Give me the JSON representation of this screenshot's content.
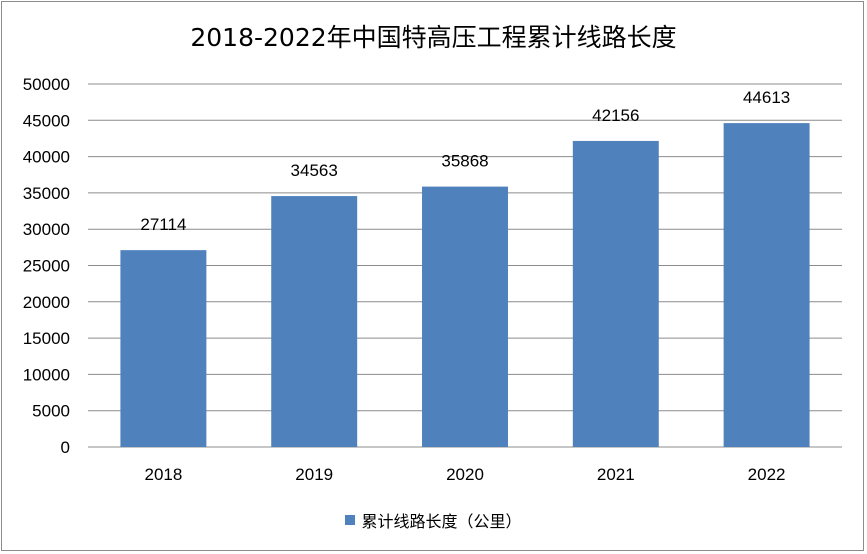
{
  "chart_data": {
    "type": "bar",
    "title": "2018-2022年中国特高压工程累计线路长度",
    "categories": [
      "2018",
      "2019",
      "2020",
      "2021",
      "2022"
    ],
    "series": [
      {
        "name": "累计线路长度（公里）",
        "values": [
          27114,
          34563,
          35868,
          42156,
          44613
        ],
        "color": "#4f81bd"
      }
    ],
    "ylim": [
      0,
      50000
    ],
    "yticks": [
      0,
      5000,
      10000,
      15000,
      20000,
      25000,
      30000,
      35000,
      40000,
      45000,
      50000
    ],
    "grid": true,
    "legend_position": "bottom",
    "data_labels": true
  }
}
